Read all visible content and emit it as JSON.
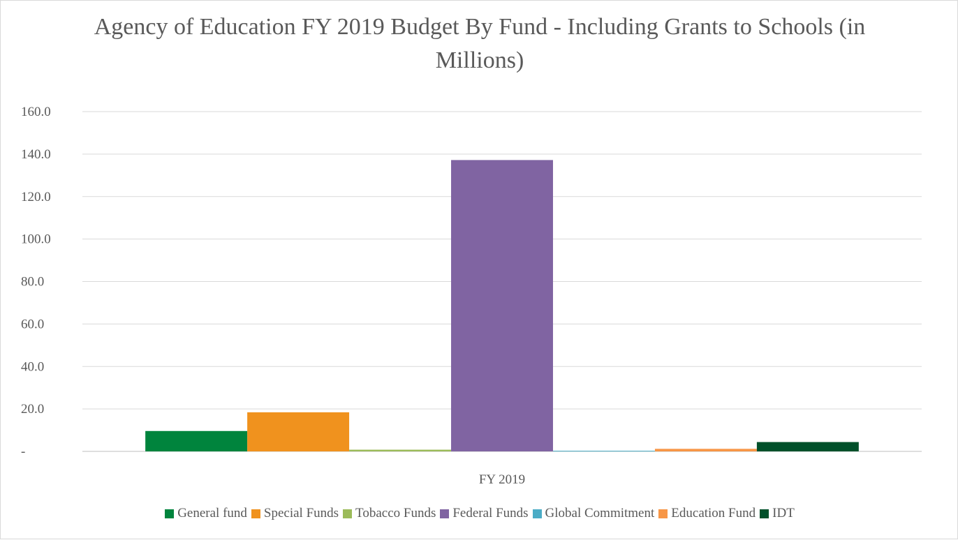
{
  "chart_data": {
    "type": "bar",
    "title": "Agency of Education FY 2019 Budget By Fund - Including Grants to Schools (in Millions)",
    "categories": [
      "FY 2019"
    ],
    "xlabel": "",
    "ylabel": "",
    "ylim": [
      0,
      160
    ],
    "yticks": [
      {
        "value": 0,
        "label": "-"
      },
      {
        "value": 20,
        "label": "20.0"
      },
      {
        "value": 40,
        "label": "40.0"
      },
      {
        "value": 60,
        "label": "60.0"
      },
      {
        "value": 80,
        "label": "80.0"
      },
      {
        "value": 100,
        "label": "100.0"
      },
      {
        "value": 120,
        "label": "120.0"
      },
      {
        "value": 140,
        "label": "140.0"
      },
      {
        "value": 160,
        "label": "160.0"
      }
    ],
    "grid": true,
    "legend_position": "bottom",
    "series": [
      {
        "name": "General fund",
        "color": "#00843d",
        "values": [
          9.6
        ]
      },
      {
        "name": "Special Funds",
        "color": "#f0921e",
        "values": [
          18.4
        ]
      },
      {
        "name": "Tobacco Funds",
        "color": "#9bbb59",
        "values": [
          0.8
        ]
      },
      {
        "name": "Federal Funds",
        "color": "#8064a2",
        "values": [
          137.2
        ]
      },
      {
        "name": "Global Commitment",
        "color": "#4bacc6",
        "values": [
          0.3
        ]
      },
      {
        "name": "Education Fund",
        "color": "#f79646",
        "values": [
          1.2
        ]
      },
      {
        "name": "IDT",
        "color": "#00502a",
        "values": [
          4.4
        ]
      }
    ]
  }
}
